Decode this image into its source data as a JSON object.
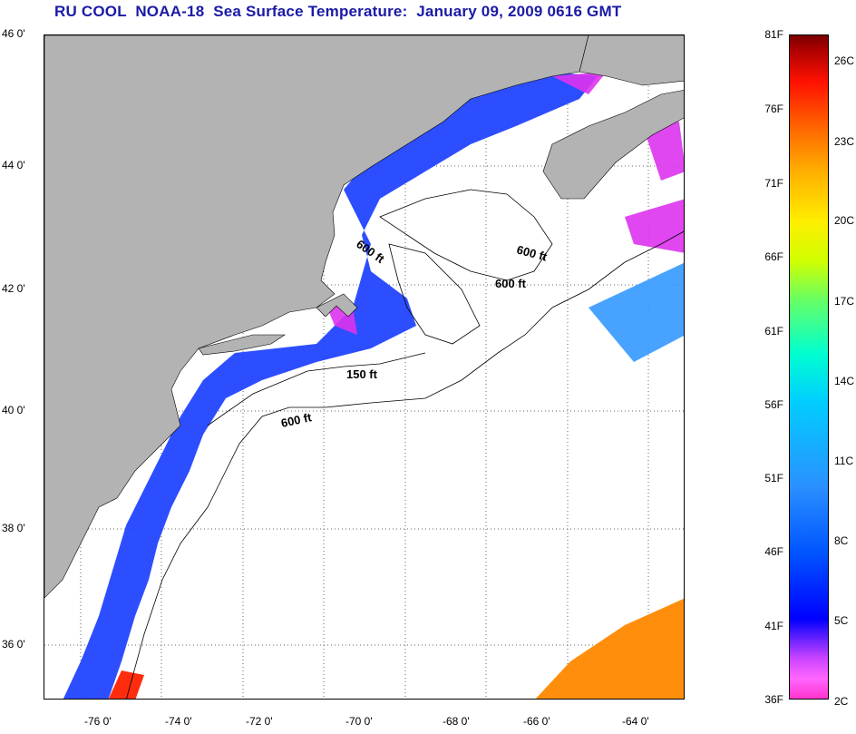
{
  "title": "RU COOL  NOAA-18  Sea Surface Temperature:  January 09, 2009 0616 GMT",
  "lat_labels": [
    "46 0'",
    "44 0'",
    "42 0'",
    "40 0'",
    "38 0'",
    "36 0'"
  ],
  "lon_labels": [
    "-76 0'",
    "-74 0'",
    "-72 0'",
    "-70 0'",
    "-68 0'",
    "-66 0'",
    "-64 0'"
  ],
  "colorbar_f": [
    "81F",
    "76F",
    "71F",
    "66F",
    "61F",
    "56F",
    "51F",
    "46F",
    "41F",
    "36F"
  ],
  "colorbar_c": [
    "26C",
    "23C",
    "20C",
    "17C",
    "14C",
    "11C",
    "8C",
    "5C",
    "2C"
  ],
  "contour_labels": [
    "600 ft",
    "600 ft",
    "600 ft",
    "150 ft",
    "600 ft"
  ],
  "colors": {
    "land": "#b3b3b3",
    "title": "#1a1aa6",
    "grid": "#555555"
  }
}
